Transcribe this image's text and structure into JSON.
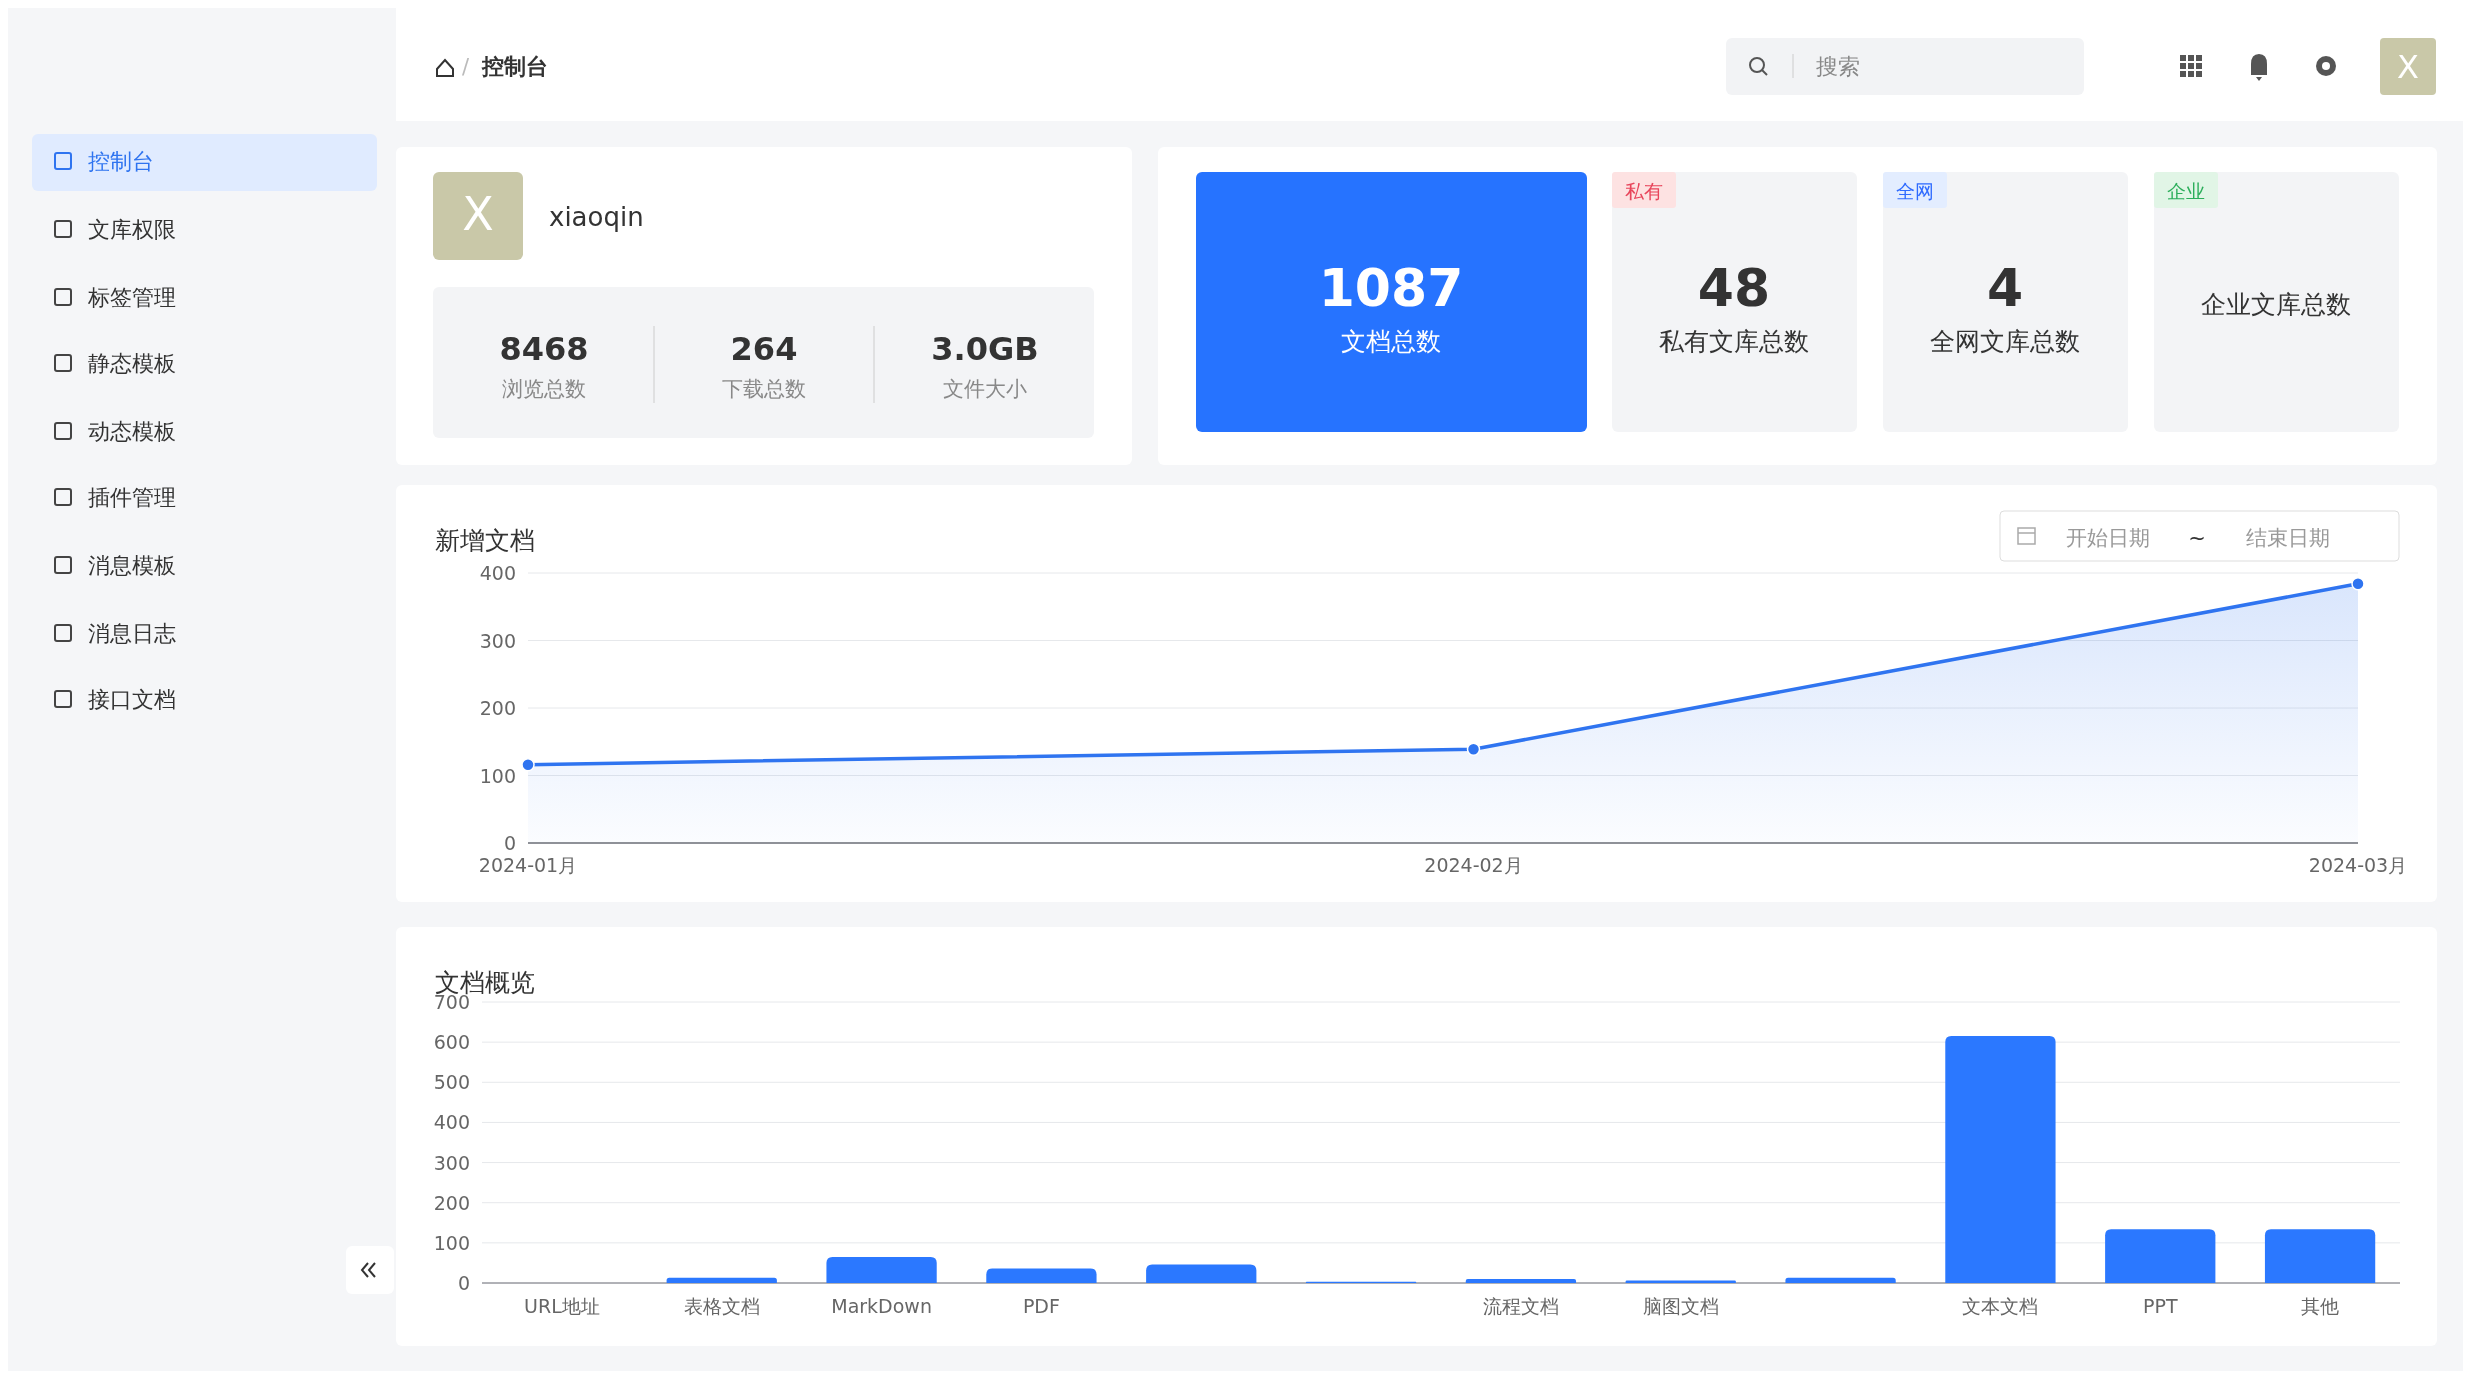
{
  "chart_data": [
    {
      "type": "other",
      "annotations": [
        "控制台",
        "文库权限",
        "标签管理",
        "静态模板",
        "动态模板",
        "插件管理",
        "消息模板",
        "消息日志",
        "接口文档",
        "控制台",
        "搜索",
        "X",
        "/"
      ]
    },
    {
      "type": "other",
      "title": "xiaoqin",
      "annotations": [
        "X",
        "8468",
        "浏览总数",
        "264",
        "下载总数",
        "3.0GB",
        "文件大小"
      ]
    },
    {
      "type": "other",
      "annotations": [
        "1087",
        "文档总数",
        "私有",
        "48",
        "私有文库总数",
        "全网",
        "4",
        "全网文库总数",
        "企业",
        "企业文库总数"
      ]
    },
    {
      "type": "area",
      "title": "新增文档",
      "annotations": [
        "开始日期",
        "~",
        "结束日期"
      ],
      "x": [
        "2024-01",
        "2024-02",
        "2024-03"
      ],
      "series": [
        {
          "color": "#2f74f0",
          "values": [
            116,
            139,
            384
          ]
        }
      ],
      "xlim": [
        "2024-01",
        "2024-03"
      ],
      "xticks": [
        {
          "value": "2024-01",
          "label": "2024-01月"
        },
        {
          "value": "2024-02",
          "label": "2024-02月"
        },
        {
          "value": "2024-03",
          "label": "2024-03月"
        }
      ],
      "ylim": [
        0,
        400
      ],
      "yticks": [
        0,
        100,
        200,
        300,
        400
      ],
      "grid": "y",
      "marker": "circle"
    },
    {
      "type": "bar",
      "title": "文档概览",
      "categories": [
        "URL地址",
        "表格文档",
        "MarkDown",
        "PDF",
        null,
        null,
        "流程文档",
        "脑图文档",
        null,
        "文本文档",
        "PPT",
        "其他"
      ],
      "series": [
        {
          "color": "#2b78ff",
          "values": [
            0,
            13,
            65,
            36,
            46,
            3,
            10,
            6,
            13,
            615,
            134,
            134
          ]
        }
      ],
      "ylim": [
        0,
        700
      ],
      "yticks": [
        0,
        100,
        200,
        300,
        400,
        500,
        600,
        700
      ],
      "grid": "y"
    }
  ]
}
